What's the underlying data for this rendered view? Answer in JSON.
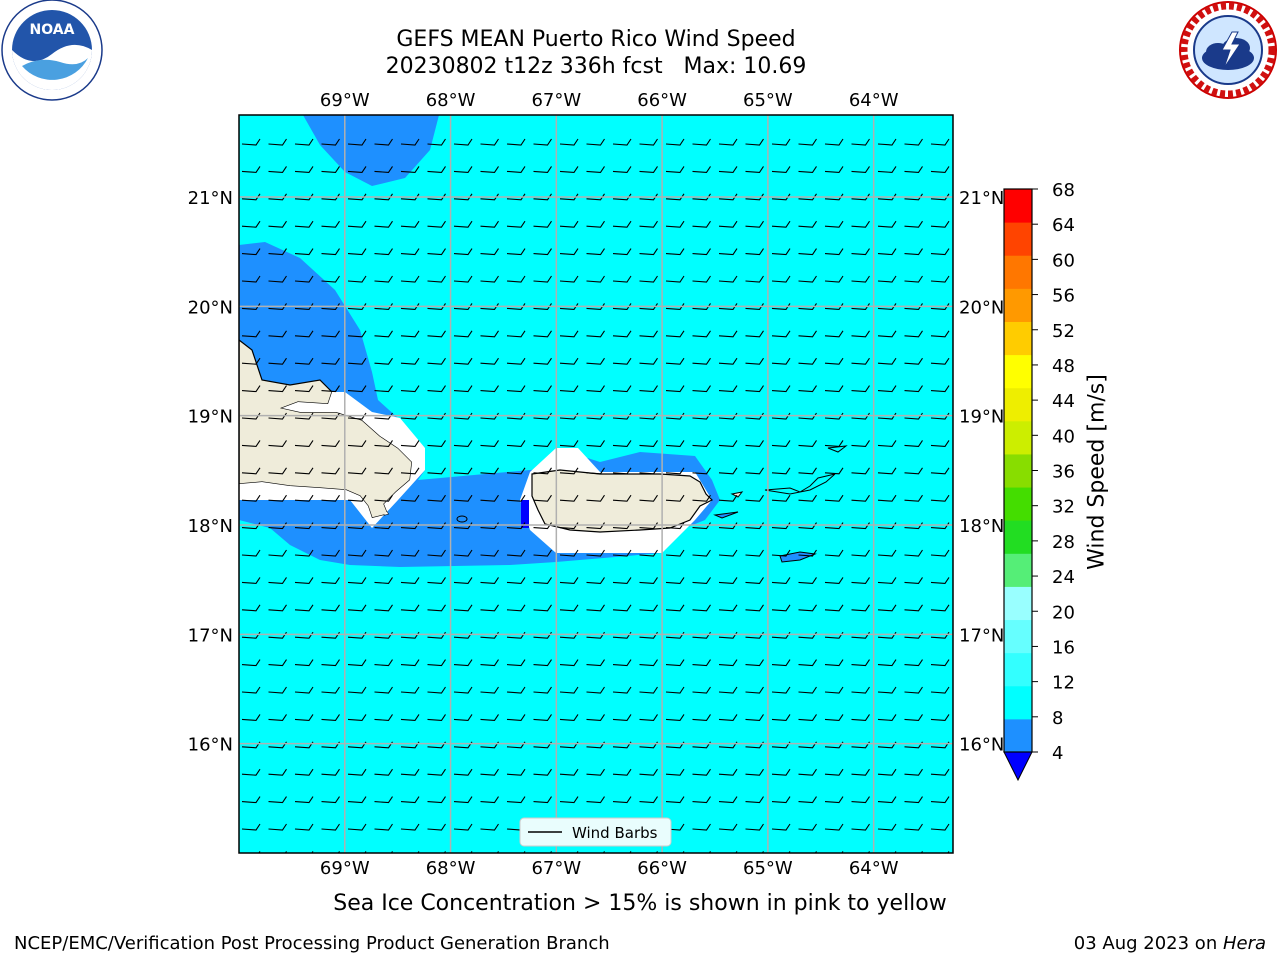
{
  "title": {
    "line1": "GEFS MEAN Puerto Rico Wind Speed",
    "line2": "20230802 t12z 336h fcst   Max: 10.69"
  },
  "logos": {
    "noaa": {
      "icon": "noaa-logo-icon",
      "text": "NOAA"
    },
    "nws": {
      "icon": "nws-logo-icon"
    }
  },
  "map": {
    "lon_labels": [
      "69°W",
      "68°W",
      "67°W",
      "66°W",
      "65°W",
      "64°W"
    ],
    "lat_labels": [
      "21°N",
      "20°N",
      "19°N",
      "18°N",
      "17°N",
      "16°N"
    ],
    "lon_range": [
      -70.0,
      -63.25
    ],
    "lat_range": [
      15.0,
      21.75
    ],
    "gridlines": true,
    "legend": {
      "label": "Wind Barbs",
      "placement": "bottom-center"
    }
  },
  "colorbar": {
    "label": "Wind Speed [m/s]",
    "ticks": [
      "68",
      "64",
      "60",
      "56",
      "52",
      "48",
      "44",
      "40",
      "36",
      "32",
      "28",
      "24",
      "20",
      "16",
      "12",
      "8",
      "4"
    ],
    "colors": [
      "#0000ff",
      "#1e90ff",
      "#00ffff",
      "#33ffff",
      "#66ffff",
      "#99ffff",
      "#55ee77",
      "#22dd22",
      "#44dd00",
      "#88dd00",
      "#ccee00",
      "#eeee00",
      "#ffff00",
      "#ffcc00",
      "#ff9900",
      "#ff7700",
      "#ff4400",
      "#ff0000"
    ]
  },
  "note": "Sea Ice Concentration > 15% is shown in pink to yellow",
  "footer": {
    "left": "NCEP/EMC/Verification Post Processing Product Generation Branch",
    "right_prefix": "03 Aug 2023 on ",
    "right_machine": "Hera"
  }
}
